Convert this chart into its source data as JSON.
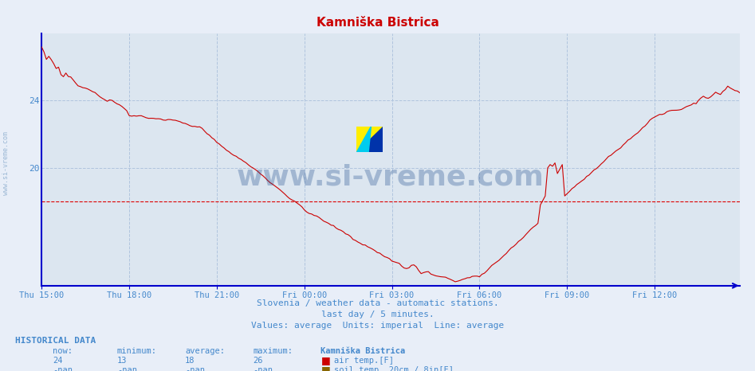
{
  "title": "Kamniška Bistrica",
  "title_color": "#cc0000",
  "bg_color": "#e8eef8",
  "plot_bg_color": "#dce6f0",
  "grid_color": "#b0c4de",
  "line_color": "#cc0000",
  "axis_color": "#0000cc",
  "text_color": "#4488cc",
  "watermark_text": "www.si-vreme.com",
  "watermark_color": "#1a4a8a",
  "subtitle1": "Slovenia / weather data - automatic stations.",
  "subtitle2": "last day / 5 minutes.",
  "subtitle3": "Values: average  Units: imperial  Line: average",
  "hist_label": "HISTORICAL DATA",
  "col_headers": [
    "now:",
    "minimum:",
    "average:",
    "maximum:",
    "Kamniška Bistrica"
  ],
  "row1_vals": [
    "24",
    "13",
    "18",
    "26"
  ],
  "row1_label": "air temp.[F]",
  "row1_color": "#cc0000",
  "row2_vals": [
    "-nan",
    "-nan",
    "-nan",
    "-nan"
  ],
  "row2_label": "soil temp. 20cm / 8in[F]",
  "row2_color": "#886600",
  "yticks": [
    20,
    24
  ],
  "ylim_min": 13,
  "ylim_max": 28,
  "average_line_y": 18,
  "average_line_color": "#dd0000",
  "x_tick_labels": [
    "Thu 15:00",
    "Thu 18:00",
    "Thu 21:00",
    "Fri 00:00",
    "Fri 03:00",
    "Fri 06:00",
    "Fri 09:00",
    "Fri 12:00"
  ],
  "x_tick_positions": [
    0,
    36,
    72,
    108,
    144,
    180,
    216,
    252
  ],
  "total_points": 288,
  "side_label": "www.si-vreme.com",
  "side_label_color": "#88aacc",
  "logo_yellow": "#ffee00",
  "logo_cyan": "#00ccee",
  "logo_blue": "#0033aa"
}
